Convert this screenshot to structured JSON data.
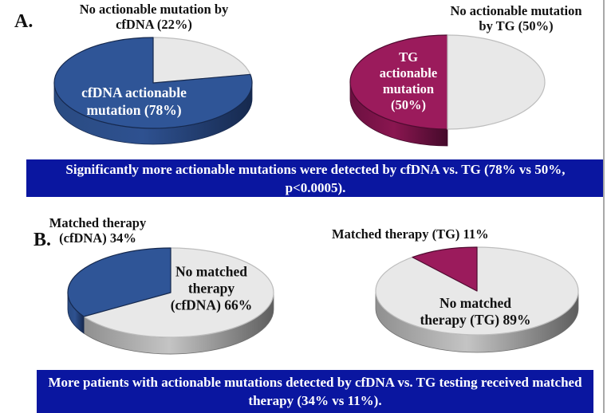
{
  "colors": {
    "pie_blue": "#2F5597",
    "pie_gray": "#E8E8E8",
    "pie_magenta": "#9B1B5C",
    "banner_bg": "#0A16A0",
    "banner_text": "#FFFFFF"
  },
  "section_a": {
    "label": "A.",
    "left_chart": {
      "title": "No actionable mutation by\ncfDNA (22%)",
      "inner_label": "cfDNA actionable\nmutation (78%)"
    },
    "right_chart": {
      "title": "No actionable mutation\nby TG (50%)",
      "inner_label": "TG\nactionable\nmutation\n(50%)"
    },
    "banner": "Significantly more actionable mutations were detected by cfDNA vs. TG (78% vs 50%, p<0.0005)."
  },
  "section_b": {
    "label": "B.",
    "left_chart": {
      "title": "Matched therapy\n(cfDNA) 34%",
      "inner_label": "No matched\ntherapy\n(cfDNA) 66%"
    },
    "right_chart": {
      "title": "Matched therapy (TG) 11%",
      "inner_label": "No matched\ntherapy (TG) 89%"
    },
    "banner": "More patients with actionable mutations detected by cfDNA vs. TG testing received matched therapy (34% vs 11%)."
  },
  "chart_data": [
    {
      "name": "pie-a-cfdna",
      "type": "pie",
      "title": "No actionable mutation by cfDNA (22%)",
      "slices": [
        {
          "label": "No actionable mutation by cfDNA",
          "pct": 22,
          "color": "#E8E8E8"
        },
        {
          "label": "cfDNA actionable mutation",
          "pct": 78,
          "color": "#2F5597"
        }
      ]
    },
    {
      "name": "pie-a-tg",
      "type": "pie",
      "title": "No actionable mutation by TG (50%)",
      "slices": [
        {
          "label": "TG actionable mutation",
          "pct": 50,
          "color": "#9B1B5C"
        },
        {
          "label": "No actionable mutation by TG",
          "pct": 50,
          "color": "#E8E8E8"
        }
      ]
    },
    {
      "name": "pie-b-cfdna",
      "type": "pie",
      "title": "Matched therapy (cfDNA) 34%",
      "slices": [
        {
          "label": "No matched therapy (cfDNA)",
          "pct": 66,
          "color": "#E8E8E8"
        },
        {
          "label": "Matched therapy (cfDNA)",
          "pct": 34,
          "color": "#2F5597"
        }
      ]
    },
    {
      "name": "pie-b-tg",
      "type": "pie",
      "title": "Matched therapy (TG) 11%",
      "slices": [
        {
          "label": "No matched therapy (TG)",
          "pct": 89,
          "color": "#E8E8E8"
        },
        {
          "label": "Matched therapy (TG)",
          "pct": 11,
          "color": "#9B1B5C"
        }
      ]
    }
  ]
}
